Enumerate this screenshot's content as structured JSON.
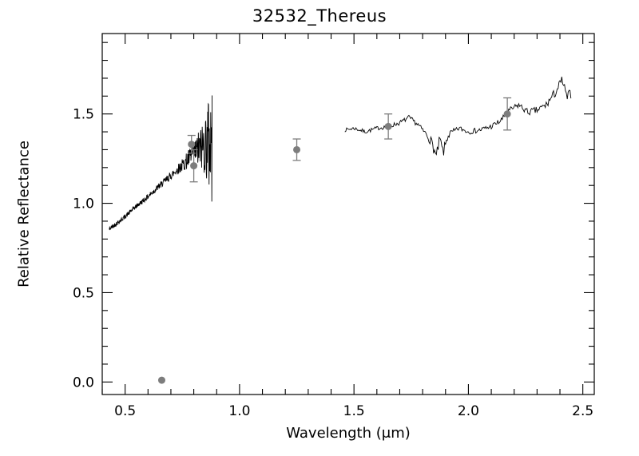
{
  "chart_data": {
    "type": "line+scatter",
    "title": "32532_Thereus",
    "xlabel": "Wavelength (μm)",
    "ylabel": "Relative Reflectance",
    "xlim": [
      0.4,
      2.55
    ],
    "ylim": [
      -0.07,
      1.95
    ],
    "xticks": [
      0.5,
      1.0,
      1.5,
      2.0,
      2.5
    ],
    "yticks": [
      0.0,
      0.5,
      1.0,
      1.5
    ],
    "x_minor_step": 0.1,
    "y_minor_step": 0.1,
    "grid": false,
    "legend": false,
    "line_color": "#000000",
    "point_color": "#7d7d7d",
    "series": [
      {
        "name": "visible-spectrum",
        "type": "line",
        "step": 0.0012,
        "seed": 42,
        "anchors": [
          [
            0.43,
            0.855
          ],
          [
            0.46,
            0.885
          ],
          [
            0.49,
            0.915
          ],
          [
            0.52,
            0.95
          ],
          [
            0.55,
            0.985
          ],
          [
            0.58,
            1.015
          ],
          [
            0.61,
            1.05
          ],
          [
            0.64,
            1.085
          ],
          [
            0.67,
            1.12
          ],
          [
            0.7,
            1.155
          ],
          [
            0.73,
            1.19
          ],
          [
            0.76,
            1.225
          ],
          [
            0.79,
            1.265
          ],
          [
            0.82,
            1.3
          ],
          [
            0.85,
            1.33
          ],
          [
            0.88,
            1.35
          ]
        ],
        "noise_anchors": [
          [
            0.43,
            0.013
          ],
          [
            0.55,
            0.013
          ],
          [
            0.65,
            0.018
          ],
          [
            0.72,
            0.025
          ],
          [
            0.76,
            0.04
          ],
          [
            0.8,
            0.07
          ],
          [
            0.83,
            0.12
          ],
          [
            0.855,
            0.2
          ],
          [
            0.87,
            0.32
          ],
          [
            0.88,
            0.45
          ]
        ]
      },
      {
        "name": "nir-spectrum",
        "type": "line",
        "step": 0.004,
        "seed": 7,
        "anchors": [
          [
            1.46,
            1.41
          ],
          [
            1.5,
            1.42
          ],
          [
            1.55,
            1.4
          ],
          [
            1.6,
            1.42
          ],
          [
            1.65,
            1.43
          ],
          [
            1.7,
            1.45
          ],
          [
            1.74,
            1.48
          ],
          [
            1.78,
            1.44
          ],
          [
            1.82,
            1.38
          ],
          [
            1.84,
            1.34
          ],
          [
            1.86,
            1.26
          ],
          [
            1.875,
            1.36
          ],
          [
            1.89,
            1.28
          ],
          [
            1.91,
            1.38
          ],
          [
            1.96,
            1.42
          ],
          [
            2.0,
            1.4
          ],
          [
            2.05,
            1.41
          ],
          [
            2.1,
            1.43
          ],
          [
            2.14,
            1.46
          ],
          [
            2.18,
            1.52
          ],
          [
            2.22,
            1.55
          ],
          [
            2.26,
            1.51
          ],
          [
            2.3,
            1.52
          ],
          [
            2.34,
            1.55
          ],
          [
            2.38,
            1.62
          ],
          [
            2.41,
            1.69
          ],
          [
            2.43,
            1.59
          ],
          [
            2.45,
            1.62
          ]
        ],
        "noise_anchors": [
          [
            1.46,
            0.01
          ],
          [
            1.8,
            0.014
          ],
          [
            1.85,
            0.03
          ],
          [
            1.9,
            0.03
          ],
          [
            1.95,
            0.014
          ],
          [
            2.25,
            0.018
          ],
          [
            2.35,
            0.025
          ],
          [
            2.45,
            0.03
          ]
        ]
      },
      {
        "name": "photometry",
        "type": "scatter",
        "points": [
          {
            "x": 0.66,
            "y": 0.01,
            "yerr": 0.0
          },
          {
            "x": 0.79,
            "y": 1.33,
            "yerr": 0.05
          },
          {
            "x": 0.8,
            "y": 1.21,
            "yerr": 0.09
          },
          {
            "x": 1.25,
            "y": 1.3,
            "yerr": 0.06
          },
          {
            "x": 1.65,
            "y": 1.43,
            "yerr": 0.07
          },
          {
            "x": 2.17,
            "y": 1.5,
            "yerr": 0.09
          }
        ]
      }
    ]
  }
}
